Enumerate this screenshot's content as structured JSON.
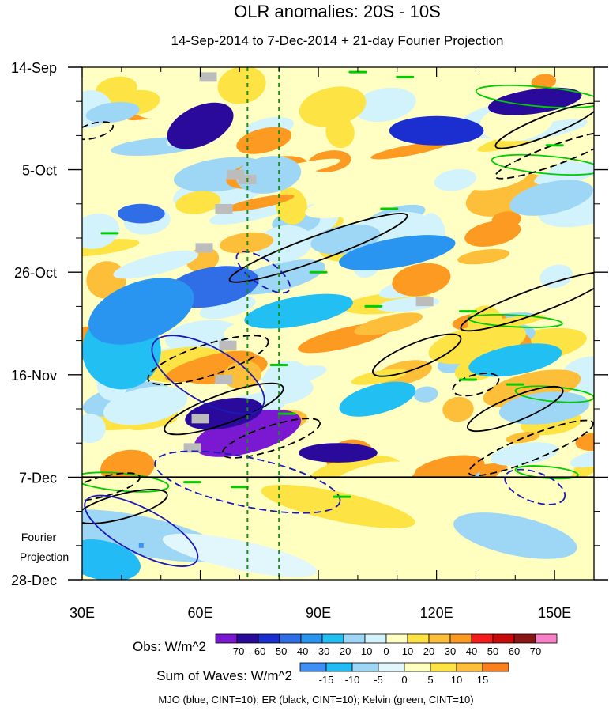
{
  "chart_data": {
    "type": "heatmap",
    "title": "OLR anomalies: 20S - 10S",
    "subtitle": "14-Sep-2014 to 7-Dec-2014 + 21-day Fourier Projection",
    "x_axis": {
      "range": [
        30,
        160
      ],
      "tick_values": [
        30,
        60,
        90,
        120,
        150
      ],
      "tick_labels": [
        "30E",
        "60E",
        "90E",
        "120E",
        "150E"
      ]
    },
    "y_axis": {
      "range_days": [
        0,
        105
      ],
      "tick_days": [
        0,
        21,
        42,
        63,
        84,
        105
      ],
      "tick_labels": [
        "14-Sep",
        "5-Oct",
        "26-Oct",
        "16-Nov",
        "7-Dec",
        "28-Dec"
      ],
      "direction": "time increases downward"
    },
    "forecast_start_day": 84,
    "forecast_label": [
      "Fourier",
      "Projection"
    ],
    "reference_lines_lon": [
      72,
      80
    ],
    "obs_legend": {
      "label": "Obs: W/m^2",
      "levels": [
        "-70",
        "-60",
        "-50",
        "-40",
        "-30",
        "-20",
        "-10",
        "0",
        "10",
        "20",
        "30",
        "40",
        "50",
        "60",
        "70"
      ],
      "colors": [
        "#7a18d2",
        "#2a0a9a",
        "#1b2fd0",
        "#2f6ee6",
        "#2a95f0",
        "#22bff2",
        "#9ed6f5",
        "#d2f3fb",
        "#ffffc4",
        "#fde343",
        "#fdbf3a",
        "#fc9a21",
        "#f61c1c",
        "#c80a0a",
        "#8b1515",
        "#f97fc8"
      ]
    },
    "waves_legend": {
      "label": "Sum of Waves: W/m^2",
      "levels": [
        "-15",
        "-10",
        "-5",
        "0",
        "5",
        "10",
        "15"
      ],
      "colors": [
        "#3d8ff5",
        "#23bbf5",
        "#9ed6f5",
        "#e2f7fc",
        "#ffffbf",
        "#fde343",
        "#fdbf3a",
        "#fc7f1d"
      ]
    },
    "caption": "MJO (blue, CINT=10); ER (black, CINT=10); Kelvin (green, CINT=10)",
    "contour_series": [
      {
        "name": "MJO",
        "color": "#1a1ab8"
      },
      {
        "name": "ER",
        "color": "#000000"
      },
      {
        "name": "Kelvin",
        "color": "#00cc00"
      }
    ],
    "anomaly_features": [
      {
        "lon": 60,
        "day": 12,
        "rx": 9,
        "ry": 4,
        "level": 1,
        "rot": -25
      },
      {
        "lon": 45,
        "day": 30,
        "rx": 6,
        "ry": 2,
        "level": 3,
        "rot": 0
      },
      {
        "lon": 63,
        "day": 45,
        "rx": 12,
        "ry": 4,
        "level": 3,
        "rot": -10
      },
      {
        "lon": 72,
        "day": 75,
        "rx": 14,
        "ry": 4,
        "level": 0,
        "rot": -15
      },
      {
        "lon": 66,
        "day": 71,
        "rx": 10,
        "ry": 3,
        "level": 1,
        "rot": -10
      },
      {
        "lon": 95,
        "day": 79,
        "rx": 10,
        "ry": 2,
        "level": 1,
        "rot": 0
      },
      {
        "lon": 145,
        "day": 7,
        "rx": 12,
        "ry": 2.5,
        "level": 1,
        "rot": -8
      },
      {
        "lon": 40,
        "day": 59,
        "rx": 6,
        "ry": 3,
        "level": 4,
        "rot": 0
      },
      {
        "lon": 32,
        "day": 74,
        "rx": 4,
        "ry": 3,
        "level": 7,
        "rot": 0
      },
      {
        "lon": 40,
        "day": 58,
        "rx": 10,
        "ry": 8,
        "level": 5,
        "rot": 0
      },
      {
        "lon": 45,
        "day": 50,
        "rx": 14,
        "ry": 6,
        "level": 4,
        "rot": -20
      },
      {
        "lon": 85,
        "day": 50,
        "rx": 14,
        "ry": 3,
        "level": 5,
        "rot": -10
      },
      {
        "lon": 110,
        "day": 38,
        "rx": 15,
        "ry": 3,
        "level": 4,
        "rot": -10
      },
      {
        "lon": 140,
        "day": 60,
        "rx": 12,
        "ry": 3,
        "level": 5,
        "rot": -10
      },
      {
        "lon": 60,
        "day": 90,
        "rx": 15,
        "ry": 4,
        "level": 4,
        "rot": -5
      },
      {
        "lon": 120,
        "day": 13,
        "rx": 12,
        "ry": 3,
        "level": 2,
        "rot": 0
      },
      {
        "lon": 105,
        "day": 68,
        "rx": 10,
        "ry": 3,
        "level": 5,
        "rot": -15
      }
    ],
    "mjo_contours": [
      {
        "lon": 62,
        "day": 63,
        "rx": 16,
        "ry": 5.5,
        "rot": 30,
        "dashed": false
      },
      {
        "lon": 45,
        "day": 95,
        "rx": 16,
        "ry": 4.5,
        "rot": 28,
        "dashed": false
      },
      {
        "lon": 72,
        "day": 85,
        "rx": 24,
        "ry": 5,
        "rot": 12,
        "dashed": true
      },
      {
        "lon": 76,
        "day": 42,
        "rx": 8,
        "ry": 2.5,
        "rot": 35,
        "dashed": true
      },
      {
        "lon": 145,
        "day": 86,
        "rx": 8,
        "ry": 3,
        "rot": 20,
        "dashed": true
      }
    ],
    "er_contours": [
      {
        "lon": 90,
        "day": 37,
        "rx": 24,
        "ry": 2.5,
        "rot": -20,
        "dashed": false
      },
      {
        "lon": 66,
        "day": 70,
        "rx": 16,
        "ry": 3,
        "rot": -20,
        "dashed": false
      },
      {
        "lon": 62,
        "day": 60,
        "rx": 16,
        "ry": 3.2,
        "rot": -18,
        "dashed": true
      },
      {
        "lon": 78,
        "day": 76,
        "rx": 13,
        "ry": 2.5,
        "rot": -18,
        "dashed": true
      },
      {
        "lon": 115,
        "day": 59,
        "rx": 12,
        "ry": 2.5,
        "rot": -22,
        "dashed": false
      },
      {
        "lon": 140,
        "day": 70,
        "rx": 13,
        "ry": 2.5,
        "rot": -22,
        "dashed": false
      },
      {
        "lon": 144,
        "day": 78,
        "rx": 17,
        "ry": 2.5,
        "rot": -22,
        "dashed": true
      },
      {
        "lon": 148,
        "day": 12,
        "rx": 14,
        "ry": 2,
        "rot": -22,
        "dashed": false
      },
      {
        "lon": 150,
        "day": 18,
        "rx": 16,
        "ry": 2,
        "rot": -20,
        "dashed": true
      },
      {
        "lon": 145,
        "day": 48,
        "rx": 20,
        "ry": 2.5,
        "rot": -20,
        "dashed": false
      },
      {
        "lon": 130,
        "day": 65,
        "rx": 6,
        "ry": 2,
        "rot": -15,
        "dashed": true
      },
      {
        "lon": 40,
        "day": 90,
        "rx": 12,
        "ry": 2.5,
        "rot": -15,
        "dashed": false
      },
      {
        "lon": 35,
        "day": 86,
        "rx": 10,
        "ry": 2,
        "rot": -15,
        "dashed": true
      },
      {
        "lon": 33,
        "day": 13,
        "rx": 5,
        "ry": 1.5,
        "rot": -15,
        "dashed": true
      }
    ],
    "kelvin_contours": [
      {
        "lon": 146,
        "day": 6,
        "rx": 16,
        "ry": 2,
        "rot": 5
      },
      {
        "lon": 148,
        "day": 20,
        "rx": 14,
        "ry": 1.8,
        "rot": 5
      },
      {
        "lon": 40,
        "day": 85,
        "rx": 12,
        "ry": 1.8,
        "rot": 5
      },
      {
        "lon": 140,
        "day": 52,
        "rx": 12,
        "ry": 1.2,
        "rot": 3
      },
      {
        "lon": 150,
        "day": 67,
        "rx": 10,
        "ry": 1.5,
        "rot": 5
      },
      {
        "lon": 148,
        "day": 83,
        "rx": 8,
        "ry": 1.2,
        "rot": 5
      }
    ],
    "missing_data_boxes": [
      {
        "lon": 62,
        "day": 2
      },
      {
        "lon": 69,
        "day": 22
      },
      {
        "lon": 72,
        "day": 23
      },
      {
        "lon": 66,
        "day": 29
      },
      {
        "lon": 61,
        "day": 37
      },
      {
        "lon": 117,
        "day": 48
      },
      {
        "lon": 67,
        "day": 57
      },
      {
        "lon": 66,
        "day": 64
      },
      {
        "lon": 60,
        "day": 72
      },
      {
        "lon": 58,
        "day": 78
      }
    ],
    "kelvin_dashes": [
      {
        "lon": 100,
        "day": 1
      },
      {
        "lon": 112,
        "day": 2
      },
      {
        "lon": 150,
        "day": 16
      },
      {
        "lon": 37,
        "day": 34
      },
      {
        "lon": 108,
        "day": 29
      },
      {
        "lon": 90,
        "day": 42
      },
      {
        "lon": 104,
        "day": 49
      },
      {
        "lon": 128,
        "day": 50
      },
      {
        "lon": 80,
        "day": 61
      },
      {
        "lon": 82,
        "day": 71
      },
      {
        "lon": 58,
        "day": 85
      },
      {
        "lon": 70,
        "day": 86
      },
      {
        "lon": 96,
        "day": 88
      },
      {
        "lon": 128,
        "day": 64
      },
      {
        "lon": 140,
        "day": 65
      }
    ]
  }
}
